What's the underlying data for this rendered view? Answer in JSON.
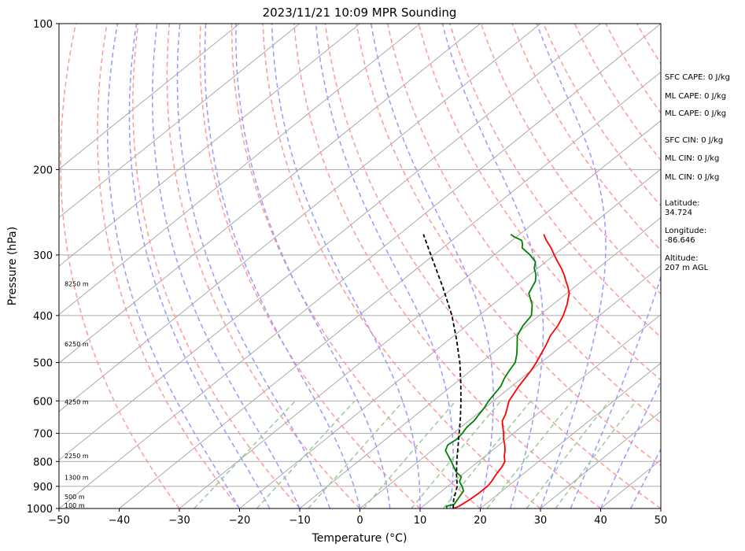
{
  "chart_data": {
    "type": "line",
    "title": "2023/11/21 10:09 MPR Sounding",
    "xlabel": "Temperature (°C)",
    "ylabel": "Pressure (hPa)",
    "xlim": [
      -50,
      50
    ],
    "ylim": [
      1000,
      100
    ],
    "y_scale": "log",
    "skew": "skew-T log-p",
    "grid": true,
    "x_ticks": [
      "−50",
      "−40",
      "−30",
      "−20",
      "−10",
      "0",
      "10",
      "20",
      "30",
      "40",
      "50"
    ],
    "x_tick_values": [
      -50,
      -40,
      -30,
      -20,
      -10,
      0,
      10,
      20,
      30,
      40,
      50
    ],
    "y_ticks": [
      "100",
      "200",
      "300",
      "400",
      "500",
      "600",
      "700",
      "800",
      "900",
      "1000"
    ],
    "y_tick_values": [
      100,
      200,
      300,
      400,
      500,
      600,
      700,
      800,
      900,
      1000
    ],
    "height_labels": [
      {
        "text": "8250 m",
        "p": 344
      },
      {
        "text": "6250 m",
        "p": 458
      },
      {
        "text": "4250 m",
        "p": 603
      },
      {
        "text": "2250 m",
        "p": 779
      },
      {
        "text": "1300 m",
        "p": 862
      },
      {
        "text": "500 m",
        "p": 946
      },
      {
        "text": "100 m",
        "p": 985
      }
    ],
    "series": [
      {
        "key": "temperature",
        "color": "#ff0000",
        "points": [
          [
            1000,
            15.5
          ],
          [
            990,
            16.0
          ],
          [
            960,
            16.4
          ],
          [
            930,
            16.6
          ],
          [
            900,
            16.6
          ],
          [
            880,
            16.3
          ],
          [
            850,
            15.6
          ],
          [
            820,
            15.0
          ],
          [
            800,
            14.4
          ],
          [
            780,
            13.2
          ],
          [
            760,
            12.2
          ],
          [
            740,
            11.0
          ],
          [
            720,
            9.6
          ],
          [
            700,
            8.4
          ],
          [
            680,
            7.0
          ],
          [
            660,
            5.6
          ],
          [
            640,
            4.8
          ],
          [
            600,
            2.6
          ],
          [
            560,
            1.2
          ],
          [
            520,
            0.0
          ],
          [
            500,
            -0.8
          ],
          [
            460,
            -2.8
          ],
          [
            440,
            -4.0
          ],
          [
            420,
            -4.8
          ],
          [
            400,
            -6.0
          ],
          [
            380,
            -7.6
          ],
          [
            360,
            -9.6
          ],
          [
            350,
            -11.0
          ],
          [
            340,
            -12.6
          ],
          [
            330,
            -14.2
          ],
          [
            320,
            -16.0
          ],
          [
            310,
            -18.0
          ],
          [
            300,
            -20.0
          ],
          [
            290,
            -22.0
          ],
          [
            280,
            -24.3
          ],
          [
            272,
            -26.0
          ]
        ]
      },
      {
        "key": "dewpoint",
        "color": "#008000",
        "points": [
          [
            1000,
            14.5
          ],
          [
            990,
            13.9
          ],
          [
            980,
            14.8
          ],
          [
            960,
            14.4
          ],
          [
            940,
            14.0
          ],
          [
            920,
            13.6
          ],
          [
            900,
            12.4
          ],
          [
            880,
            11.0
          ],
          [
            860,
            10.3
          ],
          [
            840,
            8.4
          ],
          [
            800,
            5.5
          ],
          [
            760,
            2.3
          ],
          [
            740,
            1.5
          ],
          [
            720,
            1.8
          ],
          [
            700,
            1.5
          ],
          [
            680,
            1.0
          ],
          [
            660,
            0.9
          ],
          [
            640,
            0.4
          ],
          [
            620,
            -0.1
          ],
          [
            600,
            -0.8
          ],
          [
            560,
            -1.8
          ],
          [
            540,
            -2.8
          ],
          [
            520,
            -3.6
          ],
          [
            500,
            -4.3
          ],
          [
            480,
            -5.8
          ],
          [
            460,
            -7.6
          ],
          [
            440,
            -9.5
          ],
          [
            420,
            -10.6
          ],
          [
            400,
            -11.3
          ],
          [
            380,
            -13.4
          ],
          [
            360,
            -16.3
          ],
          [
            340,
            -17.7
          ],
          [
            330,
            -18.9
          ],
          [
            320,
            -20.5
          ],
          [
            310,
            -21.7
          ],
          [
            300,
            -24.0
          ],
          [
            290,
            -26.8
          ],
          [
            285,
            -27.5
          ],
          [
            280,
            -28.4
          ],
          [
            275,
            -30.5
          ],
          [
            272,
            -31.5
          ]
        ]
      },
      {
        "key": "parcel",
        "color": "#000000",
        "dashed": true,
        "points": [
          [
            1000,
            15.5
          ],
          [
            960,
            13.8
          ],
          [
            900,
            11.6
          ],
          [
            850,
            9.0
          ],
          [
            800,
            6.4
          ],
          [
            750,
            3.8
          ],
          [
            700,
            1.0
          ],
          [
            650,
            -2.0
          ],
          [
            600,
            -5.4
          ],
          [
            550,
            -9.2
          ],
          [
            500,
            -13.5
          ],
          [
            450,
            -18.6
          ],
          [
            400,
            -24.5
          ],
          [
            350,
            -31.8
          ],
          [
            300,
            -40.5
          ],
          [
            272,
            -46.0
          ]
        ]
      }
    ]
  },
  "stats": {
    "sfc_cape": "SFC CAPE: 0 J/kg",
    "ml_cape": "ML CAPE: 0 J/kg",
    "ml_cape_2": "ML CAPE: 0 J/kg",
    "sfc_cin": "SFC CIN: 0 J/kg",
    "ml_cin": "ML CIN: 0 J/kg",
    "ml_cin_2": "ML CIN: 0 J/kg",
    "latitude_label": "Latitude:",
    "latitude_value": "34.724",
    "longitude_label": "Longitude:",
    "longitude_value": "-86.646",
    "altitude_label": "Altitude:",
    "altitude_value": "207 m AGL"
  },
  "colors": {
    "dry_adiabat": "#ff9999",
    "moist_adiabat": "#9999ff",
    "mixing_ratio": "#99cc99",
    "isotherm": "#aaaaaa",
    "isobar": "#aaaaaa"
  }
}
